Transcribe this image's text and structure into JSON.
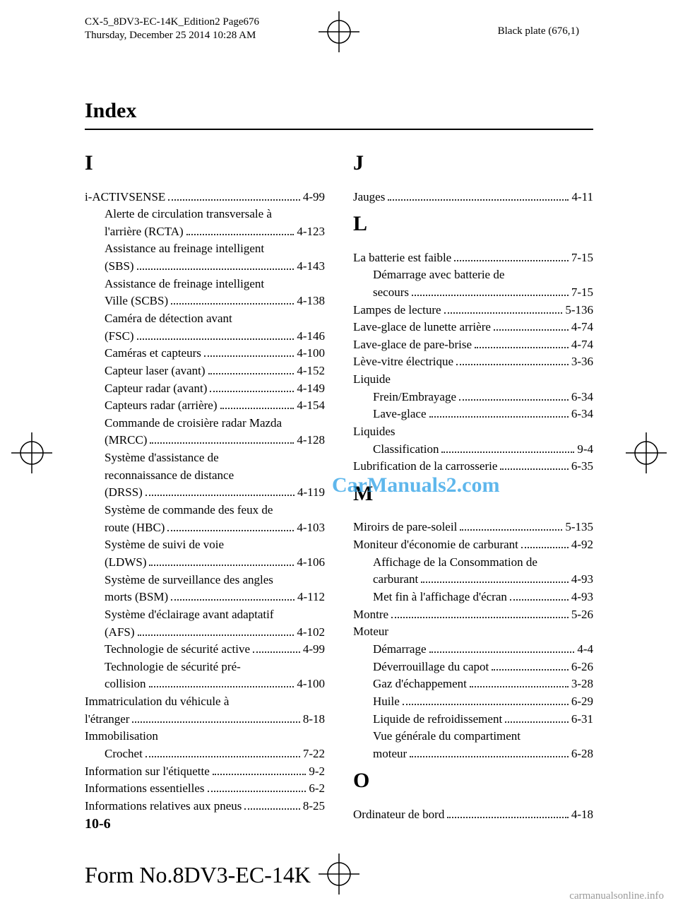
{
  "print_header": {
    "line1": "CX-5_8DV3-EC-14K_Edition2 Page676",
    "line2": "Thursday, December 25 2014 10:28 AM"
  },
  "plate_label": "Black plate (676,1)",
  "section_title": "Index",
  "watermark": "CarManuals2.com",
  "page_number": "10-6",
  "form_no": "Form No.8DV3-EC-14K",
  "footer_link": "carmanualsonline.info",
  "left": [
    {
      "type": "letter",
      "text": "I"
    },
    {
      "type": "entry",
      "label": "i-ACTIVSENSE",
      "page": "4-99"
    },
    {
      "type": "wrap",
      "indent": 1,
      "label": "Alerte de circulation transversale à"
    },
    {
      "type": "entry",
      "indent": 1,
      "label": "l'arrière (RCTA)",
      "page": "4-123"
    },
    {
      "type": "wrap",
      "indent": 1,
      "label": "Assistance au freinage intelligent"
    },
    {
      "type": "entry",
      "indent": 1,
      "label": "(SBS)",
      "page": "4-143"
    },
    {
      "type": "wrap",
      "indent": 1,
      "label": "Assistance de freinage intelligent"
    },
    {
      "type": "entry",
      "indent": 1,
      "label": "Ville (SCBS)",
      "page": "4-138"
    },
    {
      "type": "wrap",
      "indent": 1,
      "label": "Caméra de détection avant"
    },
    {
      "type": "entry",
      "indent": 1,
      "label": "(FSC)",
      "page": "4-146"
    },
    {
      "type": "entry",
      "indent": 1,
      "label": "Caméras et capteurs",
      "page": "4-100"
    },
    {
      "type": "entry",
      "indent": 1,
      "label": "Capteur laser (avant)",
      "page": "4-152"
    },
    {
      "type": "entry",
      "indent": 1,
      "label": "Capteur radar (avant)",
      "page": "4-149"
    },
    {
      "type": "entry",
      "indent": 1,
      "label": "Capteurs radar (arrière)",
      "page": "4-154"
    },
    {
      "type": "wrap",
      "indent": 1,
      "label": "Commande de croisière radar Mazda"
    },
    {
      "type": "entry",
      "indent": 1,
      "label": "(MRCC)",
      "page": "4-128"
    },
    {
      "type": "wrap",
      "indent": 1,
      "label": "Système d'assistance de"
    },
    {
      "type": "wrap",
      "indent": 1,
      "label": "reconnaissance de distance"
    },
    {
      "type": "entry",
      "indent": 1,
      "label": "(DRSS)",
      "page": "4-119"
    },
    {
      "type": "wrap",
      "indent": 1,
      "label": "Système de commande des feux de"
    },
    {
      "type": "entry",
      "indent": 1,
      "label": "route (HBC)",
      "page": "4-103"
    },
    {
      "type": "wrap",
      "indent": 1,
      "label": "Système de suivi de voie"
    },
    {
      "type": "entry",
      "indent": 1,
      "label": "(LDWS)",
      "page": "4-106"
    },
    {
      "type": "wrap",
      "indent": 1,
      "label": "Système de surveillance des angles"
    },
    {
      "type": "entry",
      "indent": 1,
      "label": "morts (BSM)",
      "page": "4-112"
    },
    {
      "type": "wrap",
      "indent": 1,
      "label": "Système d'éclairage avant adaptatif"
    },
    {
      "type": "entry",
      "indent": 1,
      "label": "(AFS)",
      "page": "4-102"
    },
    {
      "type": "entry",
      "indent": 1,
      "label": "Technologie de sécurité active",
      "page": "4-99"
    },
    {
      "type": "wrap",
      "indent": 1,
      "label": "Technologie de sécurité pré-"
    },
    {
      "type": "entry",
      "indent": 1,
      "label": "collision",
      "page": "4-100"
    },
    {
      "type": "wrap",
      "label": "Immatriculation du véhicule à"
    },
    {
      "type": "entry",
      "label": "l'étranger",
      "page": "8-18"
    },
    {
      "type": "wrap",
      "label": "Immobilisation"
    },
    {
      "type": "entry",
      "indent": 1,
      "label": "Crochet",
      "page": "7-22"
    },
    {
      "type": "entry",
      "label": "Information sur l'étiquette",
      "page": "9-2"
    },
    {
      "type": "entry",
      "label": "Informations essentielles",
      "page": "6-2"
    },
    {
      "type": "entry",
      "label": "Informations relatives aux pneus",
      "page": "8-25"
    }
  ],
  "right": [
    {
      "type": "letter",
      "text": "J"
    },
    {
      "type": "entry",
      "label": "Jauges",
      "page": "4-11"
    },
    {
      "type": "letter",
      "text": "L"
    },
    {
      "type": "entry",
      "label": "La batterie est faible",
      "page": "7-15"
    },
    {
      "type": "wrap",
      "indent": 1,
      "label": "Démarrage avec batterie de"
    },
    {
      "type": "entry",
      "indent": 1,
      "label": "secours",
      "page": "7-15"
    },
    {
      "type": "entry",
      "label": "Lampes de lecture",
      "page": "5-136"
    },
    {
      "type": "entry",
      "label": "Lave-glace de lunette arrière",
      "page": "4-74"
    },
    {
      "type": "entry",
      "label": "Lave-glace de pare-brise",
      "page": "4-74"
    },
    {
      "type": "entry",
      "label": "Lève-vitre électrique",
      "page": "3-36"
    },
    {
      "type": "wrap",
      "label": "Liquide"
    },
    {
      "type": "entry",
      "indent": 1,
      "label": "Frein/Embrayage",
      "page": "6-34"
    },
    {
      "type": "entry",
      "indent": 1,
      "label": "Lave-glace",
      "page": "6-34"
    },
    {
      "type": "wrap",
      "label": "Liquides"
    },
    {
      "type": "entry",
      "indent": 1,
      "label": "Classification",
      "page": "9-4"
    },
    {
      "type": "entry",
      "label": "Lubrification de la carrosserie",
      "page": "6-35"
    },
    {
      "type": "letter",
      "text": "M"
    },
    {
      "type": "entry",
      "label": "Miroirs de pare-soleil",
      "page": "5-135"
    },
    {
      "type": "entry",
      "label": "Moniteur d'économie de carburant",
      "page": "4-92"
    },
    {
      "type": "wrap",
      "indent": 1,
      "label": "Affichage de la Consommation de"
    },
    {
      "type": "entry",
      "indent": 1,
      "label": "carburant",
      "page": "4-93"
    },
    {
      "type": "entry",
      "indent": 1,
      "label": "Met fin à l'affichage d'écran",
      "page": "4-93"
    },
    {
      "type": "entry",
      "label": "Montre",
      "page": "5-26"
    },
    {
      "type": "wrap",
      "label": "Moteur"
    },
    {
      "type": "entry",
      "indent": 1,
      "label": "Démarrage",
      "page": "4-4"
    },
    {
      "type": "entry",
      "indent": 1,
      "label": "Déverrouillage du capot",
      "page": "6-26"
    },
    {
      "type": "entry",
      "indent": 1,
      "label": "Gaz d'échappement",
      "page": "3-28"
    },
    {
      "type": "entry",
      "indent": 1,
      "label": "Huile",
      "page": "6-29"
    },
    {
      "type": "entry",
      "indent": 1,
      "label": "Liquide de refroidissement",
      "page": "6-31"
    },
    {
      "type": "wrap",
      "indent": 1,
      "label": "Vue générale du compartiment"
    },
    {
      "type": "entry",
      "indent": 1,
      "label": "moteur",
      "page": "6-28"
    },
    {
      "type": "letter",
      "text": "O"
    },
    {
      "type": "entry",
      "label": "Ordinateur de bord",
      "page": "4-18"
    }
  ],
  "reg_mark": {
    "svg": "<svg width='58' height='58' viewBox='0 0 58 58'><circle cx='29' cy='29' r='16' fill='none' stroke='#000' stroke-width='1.5'/><line x1='29' y1='0' x2='29' y2='58' stroke='#000' stroke-width='1.5'/><line x1='0' y1='29' x2='58' y2='29' stroke='#000' stroke-width='1.5'/></svg>"
  }
}
